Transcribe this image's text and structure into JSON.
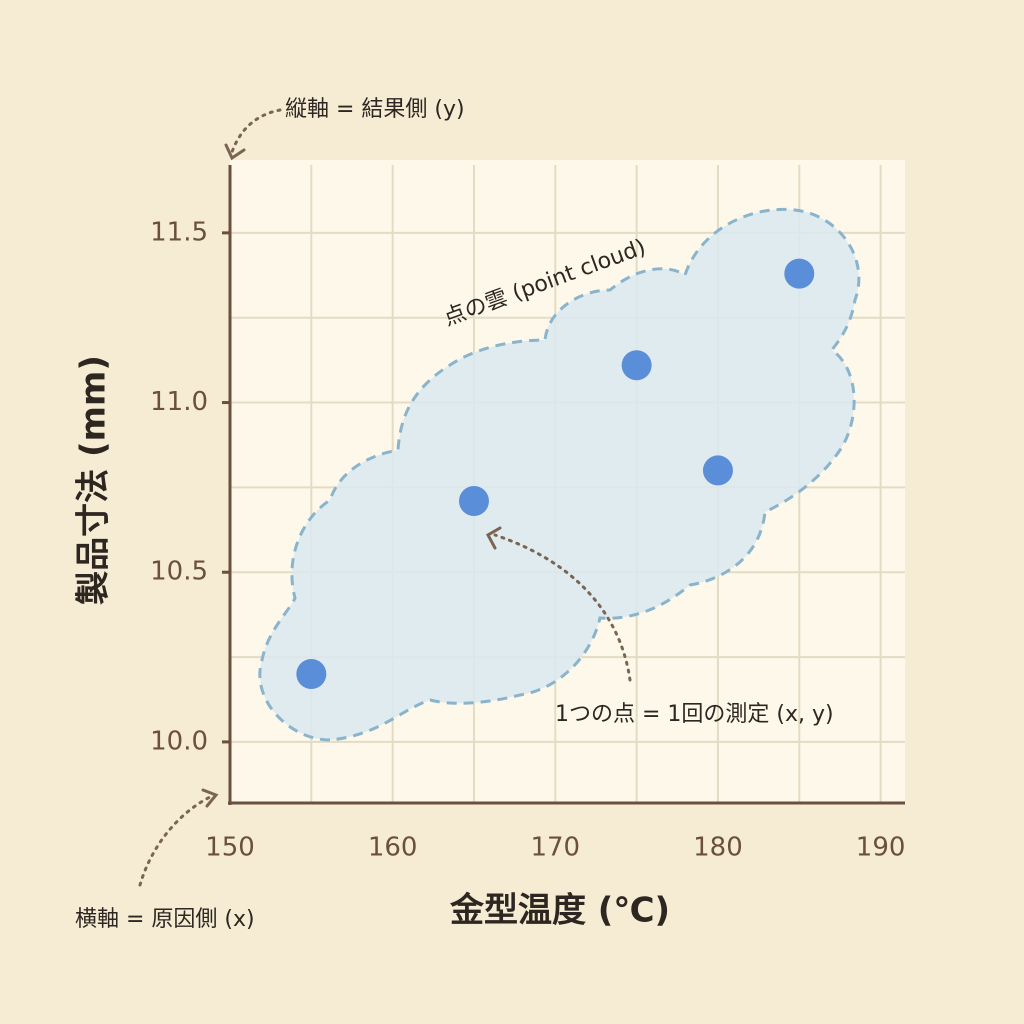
{
  "chart_data": {
    "type": "scatter",
    "x_label": "金型温度 (℃)",
    "y_label": "製品寸法 (mm)",
    "x": [
      155,
      165,
      175,
      180,
      185
    ],
    "values": [
      10.2,
      10.71,
      11.11,
      10.8,
      11.38
    ],
    "color": "#5b8ed8",
    "xlim": [
      150,
      191.5
    ],
    "xticks": [
      150,
      160,
      170,
      180,
      190
    ],
    "x_minor_ticks": [
      155,
      165,
      175,
      185
    ],
    "ylim": [
      9.82,
      11.7
    ],
    "yticks": [
      {
        "value": 10,
        "label": "10.0"
      },
      10.5,
      {
        "value": 11,
        "label": "11.0"
      },
      11.5
    ],
    "y_minor_ticks": [
      10.25,
      10.75,
      11.25
    ],
    "grid": true,
    "annotations": {
      "y_axis_note": "縦軸 = 結果側 (y)",
      "x_axis_note": "横軸 = 原因側 (x)",
      "cloud": "点の雲 (point cloud)",
      "point": "1つの点 = 1回の測定 (x, y)"
    }
  }
}
